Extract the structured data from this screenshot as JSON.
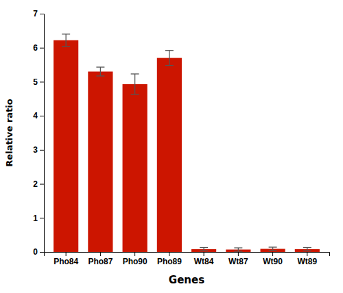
{
  "chart_data": {
    "type": "bar",
    "categories": [
      "Pho84",
      "Pho87",
      "Pho90",
      "Pho89",
      "Wt84",
      "Wt87",
      "Wt90",
      "Wt89"
    ],
    "values": [
      6.22,
      5.3,
      4.93,
      5.7,
      0.08,
      0.07,
      0.09,
      0.08
    ],
    "errors": [
      0.18,
      0.13,
      0.3,
      0.22,
      0.05,
      0.05,
      0.05,
      0.05
    ],
    "color": "#cc1500",
    "xlabel": "Genes",
    "ylabel": "Relative ratio",
    "ylim": [
      0,
      7
    ],
    "yticks": [
      0,
      1,
      2,
      3,
      4,
      5,
      6,
      7
    ]
  }
}
